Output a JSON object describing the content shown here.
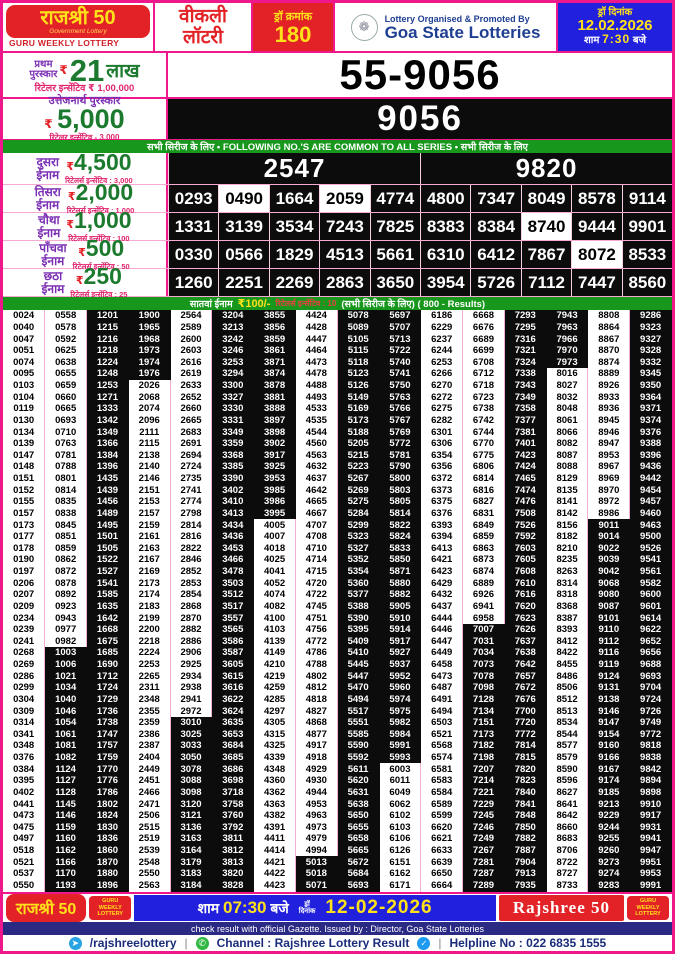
{
  "currency": "₹",
  "header": {
    "logo_title": "राजश्री 50",
    "logo_sub": "Government Lottery",
    "logo_strip": "GURU WEEKLY LOTTERY",
    "weekly_line1": "वीकली",
    "weekly_line2": "लॉटरी",
    "draw_no_label": "ड्रॉ क्रमांक",
    "draw_no": "180",
    "emblem_glyph": "❁",
    "org_label": "Lottery Organised & Promoted By",
    "org_name": "Goa State Lotteries",
    "date_label": "ड्रॉ दिनांक",
    "draw_date": "12.02.2026",
    "time_prefix": "शाम",
    "time_value": "7:30",
    "time_suffix": "बजे"
  },
  "first_prize": {
    "label1": "प्रथम",
    "label2": "पुरस्कार",
    "amount": "21",
    "unit": "लाख",
    "incentive": "रिटेलर इन्सेंटिव ₹ 1,00,000",
    "number": "55-9056"
  },
  "consolation": {
    "label": "उत्तेजनार्थ पुरस्कार",
    "amount": "5,000",
    "incentive": "रिटेलर इन्सेंटिव - 3,000",
    "number": "9056"
  },
  "common_band": "सभी सिरीज के लिए  •  FOLLOWING NO.'S ARE COMMON TO ALL SERIES •  सभी सिरीज के लिए",
  "prizes": [
    {
      "label1": "दुसरा",
      "label2": "ईनाम",
      "amount": "4,500",
      "incentive": "रिटेलर्स इन्सेंटिव : 3,000",
      "numbers": [
        "2547",
        "9820"
      ],
      "highlights": []
    },
    {
      "label1": "तिसरा",
      "label2": "ईनाम",
      "amount": "2,000",
      "incentive": "रिटेलर्स इन्सेंटिव : 1,000",
      "numbers": [
        "0293",
        "0490",
        "1664",
        "2059",
        "4774",
        "4800",
        "7347",
        "8049",
        "8578",
        "9114"
      ],
      "highlights": [
        1,
        3
      ]
    },
    {
      "label1": "चौथा",
      "label2": "ईनाम",
      "amount": "1,000",
      "incentive": "रिटेलर्स इन्सेंटिव : 100",
      "numbers": [
        "1331",
        "3139",
        "3534",
        "7243",
        "7825",
        "8383",
        "8384",
        "8740",
        "9444",
        "9901"
      ],
      "highlights": [
        7
      ]
    },
    {
      "label1": "पाँचवा",
      "label2": "ईनाम",
      "amount": "500",
      "incentive": "रिटेलर्स इन्सेंटिव : 50",
      "numbers": [
        "0330",
        "0566",
        "1829",
        "4513",
        "5661",
        "6310",
        "6412",
        "7867",
        "8072",
        "8533"
      ],
      "highlights": [
        8
      ]
    },
    {
      "label1": "छठा",
      "label2": "ईनाम",
      "amount": "250",
      "incentive": "रिटेलर्स इन्सेंटिव : 25",
      "numbers": [
        "1260",
        "2251",
        "2269",
        "2863",
        "3650",
        "3954",
        "5726",
        "7112",
        "7447",
        "8560"
      ],
      "highlights": []
    }
  ],
  "seventh": {
    "title": "सातवां ईनाम",
    "amount": "₹100/-",
    "incentive": "रिटेलर्स इन्सेंटिव : 10",
    "suffix": "(सभी सिरीज के लिए) ( 800 - Results)"
  },
  "results": [
    [
      "0024",
      "0558",
      "1201",
      "1900",
      "2564",
      "3204",
      "3855",
      "4424",
      "5078",
      "5697",
      "6186",
      "6668",
      "7293",
      "7943",
      "8808",
      "9286"
    ],
    [
      "0040",
      "0578",
      "1215",
      "1965",
      "2589",
      "3213",
      "3856",
      "4428",
      "5089",
      "5707",
      "6229",
      "6676",
      "7295",
      "7963",
      "8864",
      "9323"
    ],
    [
      "0047",
      "0592",
      "1216",
      "1968",
      "2600",
      "3242",
      "3859",
      "4447",
      "5105",
      "5713",
      "6237",
      "6689",
      "7316",
      "7966",
      "8867",
      "9327"
    ],
    [
      "0051",
      "0625",
      "1218",
      "1973",
      "2603",
      "3246",
      "3861",
      "4464",
      "5115",
      "5722",
      "6244",
      "6699",
      "7321",
      "7970",
      "8870",
      "9328"
    ],
    [
      "0074",
      "0638",
      "1224",
      "1974",
      "2616",
      "3253",
      "3871",
      "4473",
      "5118",
      "5740",
      "6253",
      "6708",
      "7324",
      "7973",
      "8874",
      "9332"
    ],
    [
      "0095",
      "0655",
      "1248",
      "1976",
      "2619",
      "3294",
      "3874",
      "4478",
      "5123",
      "5741",
      "6266",
      "6712",
      "7338",
      "8016",
      "8889",
      "9345"
    ],
    [
      "0103",
      "0659",
      "1253",
      "2026",
      "2633",
      "3300",
      "3878",
      "4488",
      "5126",
      "5750",
      "6270",
      "6718",
      "7343",
      "8027",
      "8926",
      "9350"
    ],
    [
      "0104",
      "0660",
      "1271",
      "2068",
      "2652",
      "3327",
      "3881",
      "4493",
      "5149",
      "5763",
      "6272",
      "6723",
      "7349",
      "8032",
      "8933",
      "9364"
    ],
    [
      "0119",
      "0665",
      "1333",
      "2074",
      "2660",
      "3330",
      "3888",
      "4533",
      "5169",
      "5766",
      "6275",
      "6738",
      "7358",
      "8048",
      "8936",
      "9371"
    ],
    [
      "0130",
      "0693",
      "1342",
      "2096",
      "2665",
      "3331",
      "3897",
      "4535",
      "5173",
      "5767",
      "6282",
      "6742",
      "7377",
      "8061",
      "8945",
      "9374"
    ],
    [
      "0134",
      "0710",
      "1349",
      "2111",
      "2683",
      "3349",
      "3898",
      "4544",
      "5188",
      "5769",
      "6301",
      "6744",
      "7381",
      "8066",
      "8946",
      "9376"
    ],
    [
      "0139",
      "0763",
      "1366",
      "2115",
      "2691",
      "3359",
      "3902",
      "4560",
      "5205",
      "5772",
      "6306",
      "6770",
      "7401",
      "8082",
      "8947",
      "9388"
    ],
    [
      "0147",
      "0781",
      "1384",
      "2138",
      "2694",
      "3368",
      "3917",
      "4563",
      "5215",
      "5781",
      "6354",
      "6775",
      "7423",
      "8087",
      "8953",
      "9396"
    ],
    [
      "0148",
      "0788",
      "1396",
      "2140",
      "2724",
      "3385",
      "3925",
      "4632",
      "5223",
      "5790",
      "6356",
      "6806",
      "7424",
      "8088",
      "8967",
      "9436"
    ],
    [
      "0151",
      "0801",
      "1435",
      "2146",
      "2735",
      "3390",
      "3953",
      "4637",
      "5267",
      "5800",
      "6372",
      "6814",
      "7465",
      "8129",
      "8969",
      "9442"
    ],
    [
      "0152",
      "0814",
      "1439",
      "2151",
      "2741",
      "3402",
      "3985",
      "4642",
      "5269",
      "5803",
      "6373",
      "6816",
      "7474",
      "8135",
      "8970",
      "9454"
    ],
    [
      "0155",
      "0835",
      "1456",
      "2153",
      "2774",
      "3410",
      "3986",
      "4665",
      "5275",
      "5805",
      "6375",
      "6827",
      "7476",
      "8141",
      "8972",
      "9457"
    ],
    [
      "0157",
      "0838",
      "1489",
      "2157",
      "2798",
      "3413",
      "3995",
      "4667",
      "5284",
      "5814",
      "6376",
      "6831",
      "7508",
      "8142",
      "8986",
      "9460"
    ],
    [
      "0173",
      "0845",
      "1495",
      "2159",
      "2814",
      "3434",
      "4005",
      "4707",
      "5299",
      "5822",
      "6393",
      "6849",
      "7526",
      "8156",
      "9011",
      "9463"
    ],
    [
      "0177",
      "0851",
      "1501",
      "2161",
      "2816",
      "3436",
      "4007",
      "4708",
      "5323",
      "5824",
      "6394",
      "6859",
      "7592",
      "8182",
      "9014",
      "9500"
    ],
    [
      "0178",
      "0859",
      "1505",
      "2163",
      "2822",
      "3453",
      "4018",
      "4710",
      "5327",
      "5833",
      "6413",
      "6863",
      "7603",
      "8210",
      "9022",
      "9526"
    ],
    [
      "0190",
      "0862",
      "1522",
      "2167",
      "2846",
      "3466",
      "4025",
      "4714",
      "5352",
      "5850",
      "6421",
      "6873",
      "7605",
      "8235",
      "9039",
      "9541"
    ],
    [
      "0197",
      "0872",
      "1527",
      "2169",
      "2852",
      "3478",
      "4041",
      "4715",
      "5354",
      "5871",
      "6423",
      "6874",
      "7608",
      "8263",
      "9042",
      "9561"
    ],
    [
      "0206",
      "0878",
      "1541",
      "2173",
      "2853",
      "3503",
      "4052",
      "4720",
      "5360",
      "5880",
      "6429",
      "6889",
      "7610",
      "8314",
      "9068",
      "9582"
    ],
    [
      "0207",
      "0892",
      "1585",
      "2174",
      "2854",
      "3512",
      "4074",
      "4722",
      "5377",
      "5882",
      "6432",
      "6926",
      "7616",
      "8318",
      "9080",
      "9600"
    ],
    [
      "0209",
      "0923",
      "1635",
      "2183",
      "2868",
      "3517",
      "4082",
      "4745",
      "5388",
      "5905",
      "6437",
      "6941",
      "7620",
      "8368",
      "9087",
      "9601"
    ],
    [
      "0234",
      "0943",
      "1642",
      "2199",
      "2870",
      "3557",
      "4100",
      "4751",
      "5390",
      "5910",
      "6444",
      "6958",
      "7623",
      "8387",
      "9101",
      "9614"
    ],
    [
      "0239",
      "0977",
      "1668",
      "2200",
      "2882",
      "3565",
      "4103",
      "4756",
      "5395",
      "5914",
      "6446",
      "7007",
      "7626",
      "8393",
      "9110",
      "9622"
    ],
    [
      "0241",
      "0982",
      "1675",
      "2218",
      "2886",
      "3586",
      "4139",
      "4772",
      "5409",
      "5917",
      "6447",
      "7031",
      "7637",
      "8412",
      "9112",
      "9652"
    ],
    [
      "0268",
      "1003",
      "1685",
      "2224",
      "2906",
      "3587",
      "4149",
      "4786",
      "5410",
      "5927",
      "6449",
      "7034",
      "7638",
      "8422",
      "9116",
      "9656"
    ],
    [
      "0269",
      "1006",
      "1690",
      "2253",
      "2925",
      "3605",
      "4210",
      "4788",
      "5445",
      "5937",
      "6458",
      "7073",
      "7642",
      "8455",
      "9119",
      "9688"
    ],
    [
      "0286",
      "1021",
      "1712",
      "2265",
      "2934",
      "3615",
      "4219",
      "4802",
      "5447",
      "5952",
      "6473",
      "7078",
      "7657",
      "8486",
      "9124",
      "9693"
    ],
    [
      "0299",
      "1034",
      "1724",
      "2311",
      "2938",
      "3616",
      "4259",
      "4812",
      "5470",
      "5960",
      "6487",
      "7098",
      "7672",
      "8506",
      "9131",
      "9704"
    ],
    [
      "0304",
      "1040",
      "1729",
      "2348",
      "2941",
      "3622",
      "4285",
      "4818",
      "5494",
      "5974",
      "6491",
      "7128",
      "7676",
      "8512",
      "9138",
      "9724"
    ],
    [
      "0309",
      "1046",
      "1736",
      "2355",
      "2972",
      "3624",
      "4297",
      "4827",
      "5517",
      "5975",
      "6494",
      "7134",
      "7700",
      "8513",
      "9146",
      "9726"
    ],
    [
      "0314",
      "1054",
      "1738",
      "2359",
      "3010",
      "3635",
      "4305",
      "4868",
      "5551",
      "5982",
      "6503",
      "7151",
      "7720",
      "8534",
      "9147",
      "9749"
    ],
    [
      "0341",
      "1061",
      "1747",
      "2386",
      "3025",
      "3653",
      "4315",
      "4877",
      "5585",
      "5984",
      "6521",
      "7173",
      "7772",
      "8544",
      "9154",
      "9772"
    ],
    [
      "0348",
      "1081",
      "1757",
      "2387",
      "3033",
      "3684",
      "4325",
      "4917",
      "5590",
      "5991",
      "6568",
      "7182",
      "7814",
      "8577",
      "9160",
      "9818"
    ],
    [
      "0376",
      "1082",
      "1759",
      "2404",
      "3050",
      "3685",
      "4339",
      "4918",
      "5592",
      "5993",
      "6574",
      "7198",
      "7815",
      "8579",
      "9166",
      "9838"
    ],
    [
      "0384",
      "1124",
      "1770",
      "2449",
      "3078",
      "3686",
      "4348",
      "4929",
      "5611",
      "6003",
      "6581",
      "7207",
      "7820",
      "8590",
      "9167",
      "9842"
    ],
    [
      "0395",
      "1127",
      "1776",
      "2451",
      "3088",
      "3698",
      "4360",
      "4930",
      "5620",
      "6011",
      "6583",
      "7214",
      "7823",
      "8596",
      "9174",
      "9894"
    ],
    [
      "0402",
      "1128",
      "1786",
      "2466",
      "3098",
      "3718",
      "4362",
      "4944",
      "5631",
      "6049",
      "6584",
      "7221",
      "7840",
      "8627",
      "9185",
      "9898"
    ],
    [
      "0441",
      "1145",
      "1802",
      "2471",
      "3120",
      "3758",
      "4363",
      "4953",
      "5638",
      "6062",
      "6589",
      "7229",
      "7841",
      "8641",
      "9213",
      "9910"
    ],
    [
      "0473",
      "1146",
      "1824",
      "2506",
      "3121",
      "3760",
      "4382",
      "4963",
      "5650",
      "6102",
      "6599",
      "7245",
      "7848",
      "8642",
      "9229",
      "9917"
    ],
    [
      "0475",
      "1159",
      "1830",
      "2515",
      "3136",
      "3792",
      "4391",
      "4973",
      "5655",
      "6103",
      "6620",
      "7246",
      "7850",
      "8660",
      "9244",
      "9931"
    ],
    [
      "0497",
      "1160",
      "1836",
      "2519",
      "3163",
      "3811",
      "4411",
      "4979",
      "5658",
      "6106",
      "6621",
      "7249",
      "7882",
      "8683",
      "9255",
      "9941"
    ],
    [
      "0518",
      "1162",
      "1860",
      "2539",
      "3164",
      "3812",
      "4414",
      "4994",
      "5665",
      "6126",
      "6633",
      "7267",
      "7887",
      "8706",
      "9260",
      "9947"
    ],
    [
      "0521",
      "1166",
      "1870",
      "2548",
      "3179",
      "3813",
      "4421",
      "5013",
      "5672",
      "6151",
      "6639",
      "7281",
      "7904",
      "8722",
      "9273",
      "9951"
    ],
    [
      "0537",
      "1170",
      "1880",
      "2550",
      "3183",
      "3820",
      "4422",
      "5018",
      "5684",
      "6162",
      "6650",
      "7287",
      "7913",
      "8727",
      "9274",
      "9953"
    ],
    [
      "0550",
      "1193",
      "1896",
      "2563",
      "3184",
      "3828",
      "4423",
      "5071",
      "5693",
      "6171",
      "6664",
      "7289",
      "7935",
      "8733",
      "9283",
      "9991"
    ]
  ],
  "footer": {
    "logo_title": "राजश्री 50",
    "guru_strip": "GURU WEEKLY LOTTERY",
    "time_prefix": "शाम",
    "time_value": "07:30",
    "time_suffix": "बजे",
    "date_label1": "ड्रॉ",
    "date_label2": "दिनांक",
    "date_value": "12-02-2026",
    "brand_right": "Rajshree 50",
    "gazette": "check result with official Gazette. Issued by : Director, Goa State Lotteries",
    "telegram_handle": "/rajshreelottery",
    "channel_label": "Channel : Rajshree Lottery Result",
    "helpline": "Helpline No : 022 6835 1555"
  }
}
